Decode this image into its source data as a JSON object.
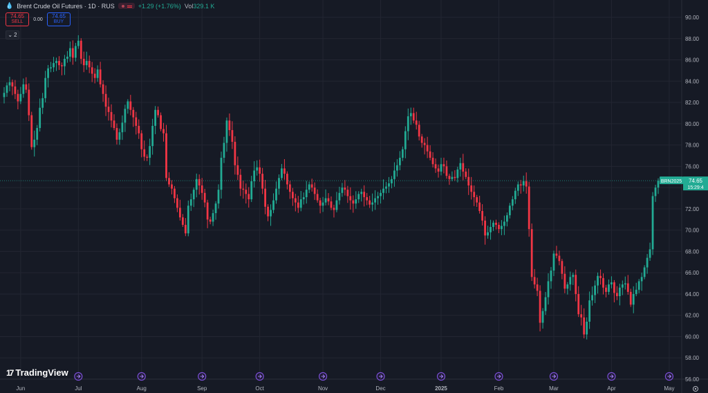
{
  "legend": {
    "title": "Brent Crude Oil Futures · 1D · RUS",
    "change": "+1.29 (+1.76%)",
    "vol_label": "Vol",
    "vol_value": "329.1 K"
  },
  "trade": {
    "sell_price": "74.65",
    "sell_label": "SELL",
    "spread": "0.00",
    "buy_price": "74.65",
    "buy_label": "BUY"
  },
  "collapse_count": "2",
  "logo_text": "TradingView",
  "colors": {
    "background": "#161a25",
    "up": "#22ab94",
    "down": "#f23645",
    "grid": "#232632",
    "axis_text": "#b2b5be",
    "event_icon": "#7b4fd6"
  },
  "icons": [
    "drop-icon",
    "flag-icon",
    "chevron-down-icon",
    "tradingview-logo-icon",
    "dividend-event-icon",
    "lightning-icon",
    "gear-icon"
  ],
  "chart_data": {
    "type": "candlestick",
    "symbol_label": "BRN2025",
    "last_price": "74.65",
    "countdown": "15:29:4",
    "y_ticks": [
      "90.00",
      "88.00",
      "86.00",
      "84.00",
      "82.00",
      "80.00",
      "78.00",
      "76.00",
      "74.00",
      "72.00",
      "70.00",
      "68.00",
      "66.00",
      "64.00",
      "62.00",
      "60.00",
      "58.00",
      "56.00"
    ],
    "ylim": [
      56,
      90
    ],
    "grid": true,
    "x_labels": [
      {
        "label": "Jun",
        "i": 6
      },
      {
        "label": "Jul",
        "i": 27
      },
      {
        "label": "Aug",
        "i": 50
      },
      {
        "label": "Sep",
        "i": 72
      },
      {
        "label": "Oct",
        "i": 93
      },
      {
        "label": "Nov",
        "i": 116
      },
      {
        "label": "Dec",
        "i": 137
      },
      {
        "label": "2025",
        "i": 159
      },
      {
        "label": "Feb",
        "i": 180
      },
      {
        "label": "Mar",
        "i": 200
      },
      {
        "label": "Apr",
        "i": 221
      },
      {
        "label": "May",
        "i": 242
      },
      {
        "label": "Jun",
        "i": 263
      }
    ],
    "event_marks_i": [
      27,
      50,
      72,
      93,
      116,
      137,
      159,
      180,
      200,
      221,
      242,
      263
    ],
    "series": [
      {
        "name": "close",
        "values": [
          82.9,
          83.6,
          83.9,
          83.5,
          82.8,
          82.1,
          82.8,
          83.7,
          83.2,
          80.8,
          77.8,
          78.5,
          79.6,
          81.5,
          82.4,
          84.3,
          85.2,
          85.3,
          85.7,
          85.9,
          85.5,
          85.4,
          86.1,
          86.3,
          87.1,
          86.2,
          87.3,
          87.8,
          86.1,
          85.5,
          85.9,
          85.3,
          84.7,
          84.3,
          85.1,
          83.7,
          82.8,
          81.6,
          81.1,
          80.3,
          79.6,
          78.5,
          79.2,
          80.1,
          81.4,
          82.1,
          81.3,
          80.6,
          79.8,
          79.1,
          77.6,
          76.9,
          76.8,
          77.9,
          79.8,
          81.3,
          80.8,
          79.5,
          79.1,
          74.9,
          74.3,
          73.9,
          73.0,
          72.1,
          71.2,
          70.5,
          69.7,
          72.3,
          72.9,
          73.8,
          74.8,
          74.2,
          73.5,
          72.6,
          71.0,
          70.8,
          71.6,
          72.5,
          73.8,
          76.8,
          78.2,
          80.3,
          79.4,
          78.3,
          76.1,
          75.2,
          73.9,
          73.8,
          73.4,
          72.9,
          74.6,
          75.6,
          75.9,
          75.3,
          73.9,
          72.2,
          71.3,
          71.9,
          72.8,
          73.9,
          74.9,
          75.8,
          75.3,
          74.3,
          73.6,
          73.0,
          72.6,
          72.1,
          72.9,
          73.1,
          73.8,
          74.3,
          74.0,
          73.4,
          72.8,
          72.3,
          72.6,
          73.0,
          72.7,
          72.1,
          71.9,
          72.8,
          73.5,
          74.0,
          73.8,
          73.2,
          72.8,
          72.5,
          72.9,
          73.4,
          73.6,
          73.1,
          72.8,
          72.4,
          72.6,
          73.0,
          73.2,
          73.5,
          73.9,
          74.1,
          74.4,
          74.8,
          75.6,
          76.1,
          76.8,
          77.6,
          79.3,
          80.7,
          81.0,
          80.3,
          79.9,
          78.8,
          78.2,
          78.0,
          77.4,
          76.8,
          76.2,
          75.8,
          75.5,
          76.2,
          76.0,
          75.1,
          74.8,
          75.0,
          74.9,
          75.7,
          76.3,
          75.5,
          75.0,
          74.2,
          73.6,
          73.1,
          72.6,
          71.8,
          70.9,
          69.5,
          69.8,
          70.3,
          70.7,
          70.5,
          70.1,
          70.4,
          70.8,
          71.4,
          72.3,
          72.9,
          73.7,
          74.3,
          74.2,
          74.6,
          74.1,
          70.1,
          65.6,
          64.9,
          64.3,
          61.3,
          62.4,
          63.7,
          65.2,
          66.2,
          67.8,
          67.6,
          67.1,
          65.9,
          64.5,
          64.9,
          65.6,
          65.8,
          64.0,
          62.1,
          61.8,
          60.2,
          61.4,
          63.4,
          63.9,
          64.8,
          65.7,
          65.5,
          64.6,
          64.2,
          64.9,
          65.1,
          64.1,
          63.8,
          64.6,
          64.9,
          65.0,
          64.2,
          63.0,
          64.0,
          64.4,
          65.2,
          65.6,
          66.5,
          67.4,
          68.2,
          73.2,
          74.0,
          74.65
        ]
      }
    ]
  }
}
